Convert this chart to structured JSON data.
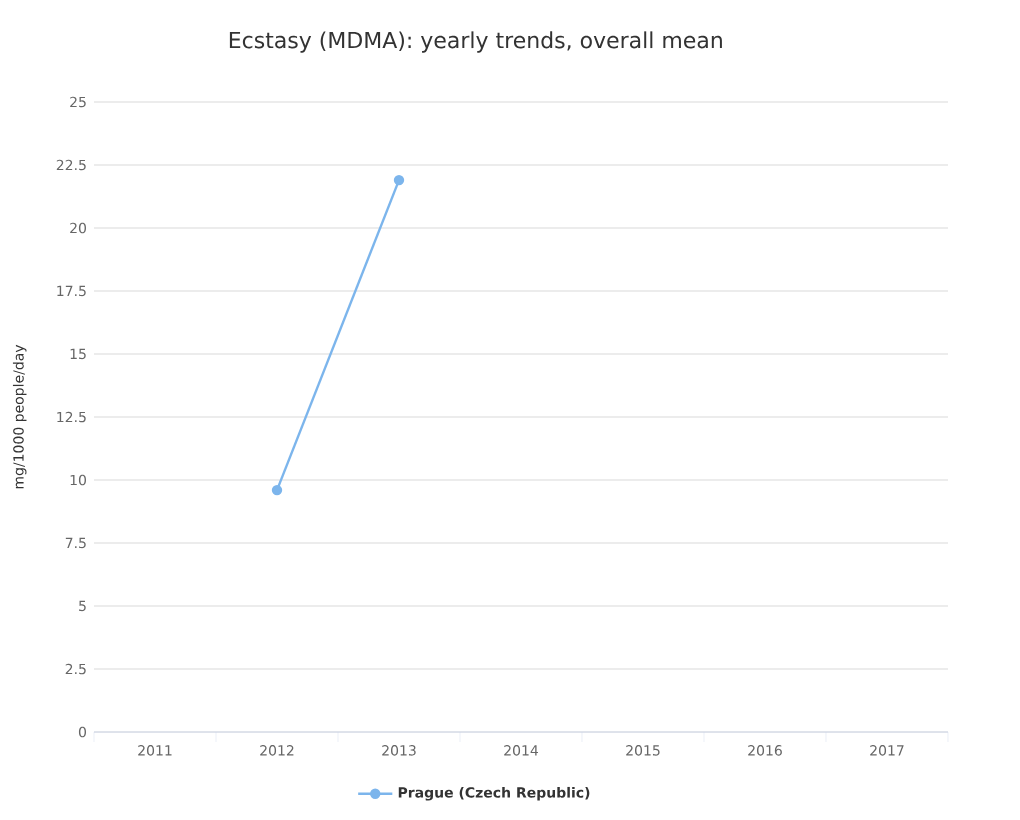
{
  "chart_data": {
    "type": "line",
    "title": "Ecstasy (MDMA): yearly trends, overall mean",
    "ylabel": "mg/1000 people/day",
    "categories": [
      "2011",
      "2012",
      "2013",
      "2014",
      "2015",
      "2016",
      "2017"
    ],
    "series": [
      {
        "name": "Prague (Czech Republic)",
        "color": "#7cb5ec",
        "values": [
          null,
          9.6,
          21.9,
          null,
          null,
          null,
          null
        ]
      }
    ],
    "ylim": [
      0,
      25
    ],
    "yticks": [
      0,
      2.5,
      5,
      7.5,
      10,
      12.5,
      15,
      17.5,
      20,
      22.5,
      25
    ],
    "grid": "y",
    "legend": "bottom",
    "marker": "circle",
    "line_style": "solid"
  }
}
